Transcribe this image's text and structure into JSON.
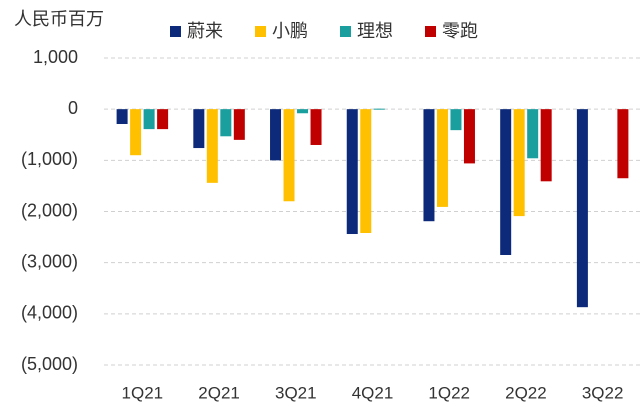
{
  "chart_data": {
    "type": "bar",
    "y_label": "人民币百万",
    "categories": [
      "1Q21",
      "2Q21",
      "3Q21",
      "4Q21",
      "1Q22",
      "2Q22",
      "3Q22"
    ],
    "series": [
      {
        "name": "蔚来",
        "color": "#0d2a7a",
        "values": [
          -290,
          -760,
          -1000,
          -2440,
          -2190,
          -2850,
          -3870
        ]
      },
      {
        "name": "小鹏",
        "color": "#ffc000",
        "values": [
          -900,
          -1440,
          -1800,
          -2420,
          -1910,
          -2090,
          null
        ]
      },
      {
        "name": "理想",
        "color": "#1a9e9e",
        "values": [
          -390,
          -530,
          -80,
          10,
          -410,
          -960,
          null
        ]
      },
      {
        "name": "零跑",
        "color": "#c00000",
        "values": [
          -390,
          -600,
          -700,
          null,
          -1060,
          -1410,
          -1350
        ]
      }
    ],
    "ylim": [
      -5000,
      1000
    ],
    "yticks": [
      {
        "value": 1000,
        "label": "1,000"
      },
      0,
      {
        "value": -1000,
        "label": "(1,000)"
      },
      {
        "value": -2000,
        "label": "(2,000)"
      },
      {
        "value": -3000,
        "label": "(3,000)"
      },
      {
        "value": -4000,
        "label": "(4,000)"
      },
      {
        "value": -5000,
        "label": "(5,000)"
      }
    ],
    "grid": true,
    "legend": "top"
  }
}
